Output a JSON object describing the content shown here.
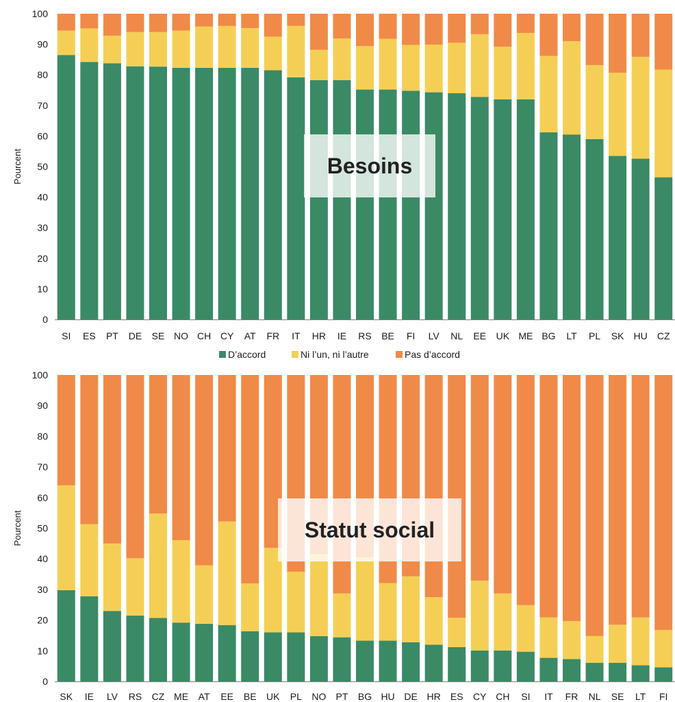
{
  "colors": {
    "agree": "#3a8a66",
    "neutral": "#f5cf55",
    "disagree": "#f08a48",
    "axis": "#7f7f7f"
  },
  "legend": {
    "items": [
      {
        "label": "D’accord",
        "color_key": "agree"
      },
      {
        "label": "Ni l’un, ni l’autre",
        "color_key": "neutral"
      },
      {
        "label": "Pas d’accord",
        "color_key": "disagree"
      }
    ],
    "placement": "between-panels"
  },
  "chart_data": [
    {
      "type": "bar",
      "stacked": true,
      "overlay_label": "Besoins",
      "ylabel": "Pourcent",
      "ylim": [
        0,
        100
      ],
      "yticks": [
        0,
        10,
        20,
        30,
        40,
        50,
        60,
        70,
        80,
        90,
        100
      ],
      "grid": false,
      "categories": [
        "SI",
        "ES",
        "PT",
        "DE",
        "SE",
        "NO",
        "CH",
        "CY",
        "AT",
        "FR",
        "IT",
        "HR",
        "IE",
        "RS",
        "BE",
        "FI",
        "LV",
        "NL",
        "EE",
        "UK",
        "ME",
        "BG",
        "LT",
        "PL",
        "SK",
        "HU",
        "CZ"
      ],
      "series": [
        {
          "name": "D’accord",
          "color_key": "agree",
          "values": [
            86.5,
            84.2,
            83.8,
            82.8,
            82.7,
            82.3,
            82.3,
            82.3,
            82.3,
            81.5,
            79.2,
            78.3,
            78.3,
            75.2,
            75.2,
            74.8,
            74.3,
            74.0,
            72.8,
            72.0,
            72.0,
            61.2,
            60.5,
            59.0,
            53.5,
            52.6,
            46.5
          ]
        },
        {
          "name": "Ni l’un, ni l’autre",
          "color_key": "neutral",
          "values": [
            8.0,
            11.0,
            9.0,
            11.2,
            11.3,
            12.2,
            13.5,
            13.7,
            13.0,
            11.0,
            16.8,
            9.9,
            13.6,
            14.2,
            16.6,
            15.0,
            15.6,
            16.5,
            20.5,
            17.2,
            21.7,
            25.0,
            30.5,
            24.2,
            27.2,
            33.3,
            35.2
          ]
        },
        {
          "name": "Pas d’accord",
          "color_key": "disagree",
          "values": [
            5.5,
            4.8,
            7.2,
            6.0,
            6.0,
            5.5,
            4.2,
            4.0,
            4.7,
            7.5,
            4.0,
            11.8,
            8.1,
            10.6,
            8.2,
            10.2,
            10.1,
            9.5,
            6.7,
            10.8,
            6.3,
            13.8,
            9.0,
            16.8,
            19.3,
            14.1,
            18.3
          ]
        }
      ]
    },
    {
      "type": "bar",
      "stacked": true,
      "overlay_label": "Statut social",
      "ylabel": "Pourcent",
      "ylim": [
        0,
        100
      ],
      "yticks": [
        0,
        10,
        20,
        30,
        40,
        50,
        60,
        70,
        80,
        90,
        100
      ],
      "grid": false,
      "categories": [
        "SK",
        "IE",
        "LV",
        "RS",
        "CZ",
        "ME",
        "AT",
        "EE",
        "BE",
        "UK",
        "PL",
        "NO",
        "PT",
        "BG",
        "HU",
        "DE",
        "HR",
        "ES",
        "CY",
        "CH",
        "SI",
        "IT",
        "FR",
        "NL",
        "SE",
        "LT",
        "FI"
      ],
      "series": [
        {
          "name": "D’accord",
          "color_key": "agree",
          "values": [
            29.8,
            27.8,
            23.0,
            21.5,
            20.7,
            19.2,
            18.8,
            18.4,
            16.4,
            16.0,
            16.0,
            14.8,
            14.4,
            13.3,
            13.3,
            12.8,
            12.0,
            11.2,
            10.1,
            10.1,
            9.7,
            7.7,
            7.3,
            6.1,
            6.1,
            5.3,
            4.6
          ]
        },
        {
          "name": "Ni l’un, ni l’autre",
          "color_key": "neutral",
          "values": [
            34.2,
            23.5,
            22.0,
            18.7,
            34.1,
            26.9,
            19.1,
            33.8,
            15.6,
            27.6,
            19.8,
            26.7,
            14.3,
            27.2,
            18.8,
            21.5,
            15.5,
            9.6,
            22.8,
            18.6,
            15.2,
            13.2,
            12.4,
            8.7,
            12.4,
            15.6,
            12.2
          ]
        },
        {
          "name": "Pas d’accord",
          "color_key": "disagree",
          "values": [
            36.0,
            48.7,
            55.0,
            59.8,
            45.2,
            53.9,
            62.1,
            47.8,
            68.0,
            56.4,
            64.2,
            58.5,
            71.3,
            59.5,
            67.9,
            65.7,
            72.5,
            79.2,
            67.1,
            71.3,
            75.1,
            79.1,
            80.3,
            85.2,
            81.5,
            79.1,
            83.2
          ]
        }
      ]
    }
  ]
}
